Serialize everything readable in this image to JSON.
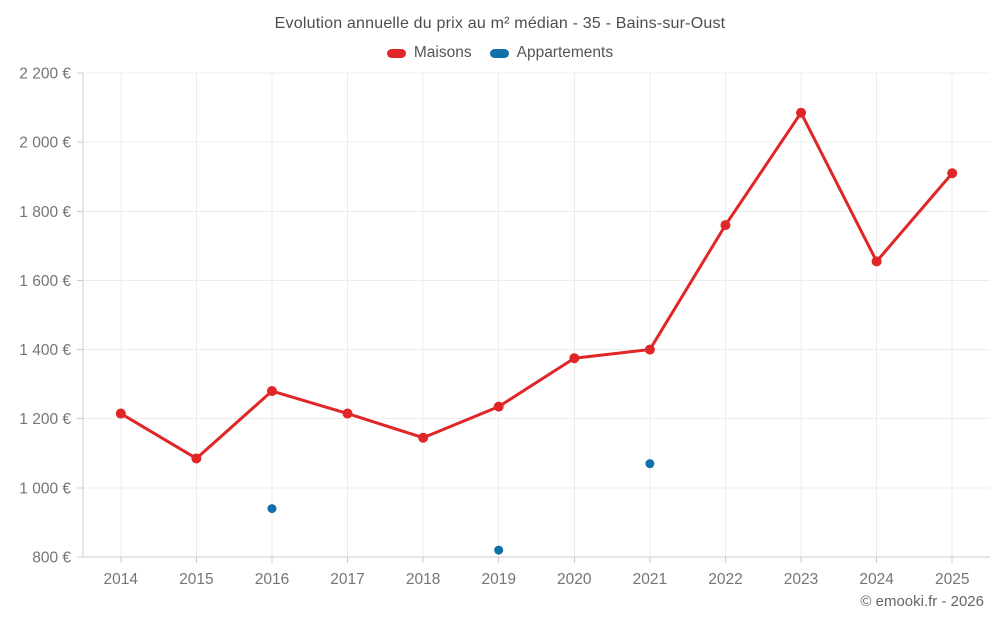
{
  "chart": {
    "title": "Evolution annuelle du prix au m² médian - 35 - Bains-sur-Oust",
    "legend": [
      {
        "label": "Maisons",
        "color": "#e02626"
      },
      {
        "label": "Appartements",
        "color": "#1270a8"
      }
    ],
    "copyright": "© emooki.fr - 2026"
  },
  "chart_data": {
    "type": "line",
    "title": "Evolution annuelle du prix au m² médian - 35 - Bains-sur-Oust",
    "categories": [
      "2014",
      "2015",
      "2016",
      "2017",
      "2018",
      "2019",
      "2020",
      "2021",
      "2022",
      "2023",
      "2024",
      "2025"
    ],
    "series": [
      {
        "name": "Maisons",
        "color": "#e02626",
        "show_line": true,
        "values": [
          1215,
          1085,
          1280,
          1215,
          1145,
          1235,
          1375,
          1400,
          1760,
          2085,
          1655,
          1910
        ]
      },
      {
        "name": "Appartements",
        "color": "#1270a8",
        "show_line": false,
        "values": [
          null,
          null,
          940,
          null,
          null,
          820,
          null,
          1070,
          null,
          null,
          null,
          null
        ]
      }
    ],
    "xlabel": "",
    "ylabel": "",
    "ylim": [
      800,
      2200
    ],
    "ytick_step": 200,
    "ytick_labels": [
      "800 €",
      "1 000 €",
      "1 200 €",
      "1 400 €",
      "1 600 €",
      "1 800 €",
      "2 000 €",
      "2 200 €"
    ],
    "grid": true,
    "legend_position": "top",
    "colors": {
      "grid": "#ececec",
      "axis": "#cccccc",
      "tick_label": "#757575",
      "title": "#4d4d4d",
      "legend_text": "#555555",
      "copyright": "#666666"
    }
  }
}
